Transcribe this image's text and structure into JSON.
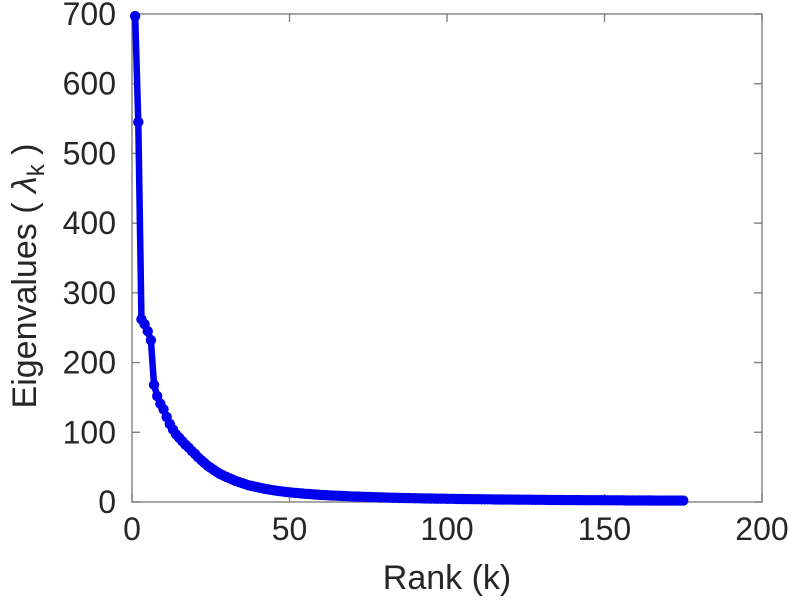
{
  "figure": {
    "background_color": "#ffffff",
    "frame_color": "#808080",
    "text_color": "#262626"
  },
  "chart_data": {
    "type": "line",
    "title": "",
    "xlabel": "Rank (k)",
    "ylabel": "Eigenvalues ( λk )",
    "ylabel_parts": {
      "prefix": "Eigenvalues ( ",
      "symbol": "λ",
      "subscript": "k",
      "suffix": " )"
    },
    "xlim": [
      0,
      200
    ],
    "ylim": [
      0,
      700
    ],
    "xticks": [
      0,
      50,
      100,
      150,
      200
    ],
    "yticks": [
      0,
      100,
      200,
      300,
      400,
      500,
      600,
      700
    ],
    "grid": false,
    "legend_position": "none",
    "series": [
      {
        "name": "eigenvalues",
        "color": "#0000EE",
        "marker": "dot",
        "x_start": 1,
        "x_step": 1,
        "values": [
          697,
          545,
          262,
          255,
          245,
          232,
          168,
          152,
          141,
          133,
          122,
          112,
          104,
          97,
          92,
          87,
          82,
          78,
          73,
          69,
          64,
          60,
          56,
          52,
          49,
          46,
          43,
          40,
          38,
          36,
          34,
          32,
          30,
          28.5,
          27,
          25.5,
          24,
          23,
          22,
          21,
          20,
          19,
          18.2,
          17.5,
          16.8,
          16.1,
          15.5,
          14.9,
          14.4,
          13.9,
          13.4,
          13,
          12.6,
          12.2,
          11.8,
          11.5,
          11.2,
          10.8,
          10.5,
          10.2,
          9.9,
          9.7,
          9.4,
          9.2,
          9,
          8.8,
          8.6,
          8.4,
          8.2,
          8,
          7.8,
          7.7,
          7.5,
          7.4,
          7.2,
          7.1,
          6.9,
          6.8,
          6.6,
          6.5,
          6.4,
          6.2,
          6.1,
          6,
          5.9,
          5.8,
          5.7,
          5.6,
          5.5,
          5.4,
          5.3,
          5.2,
          5.1,
          5.05,
          5,
          4.9,
          4.8,
          4.75,
          4.7,
          4.6,
          4.55,
          4.5,
          4.45,
          4.35,
          4.3,
          4.25,
          4.2,
          4.1,
          4.05,
          4,
          3.95,
          3.9,
          3.85,
          3.8,
          3.7,
          3.67,
          3.63,
          3.6,
          3.55,
          3.5,
          3.46,
          3.42,
          3.38,
          3.34,
          3.3,
          3.26,
          3.22,
          3.18,
          3.14,
          3.1,
          3.06,
          3.02,
          2.98,
          2.94,
          2.9,
          2.87,
          2.84,
          2.81,
          2.78,
          2.75,
          2.72,
          2.69,
          2.66,
          2.63,
          2.6,
          2.58,
          2.56,
          2.54,
          2.52,
          2.5,
          2.47,
          2.44,
          2.41,
          2.38,
          2.35,
          2.33,
          2.31,
          2.29,
          2.27,
          2.25,
          2.23,
          2.21,
          2.19,
          2.17,
          2.15,
          2.13,
          2.11,
          2.09,
          2.07,
          2.05,
          2.04,
          2.03,
          2.02,
          2.01,
          2
        ]
      }
    ]
  }
}
